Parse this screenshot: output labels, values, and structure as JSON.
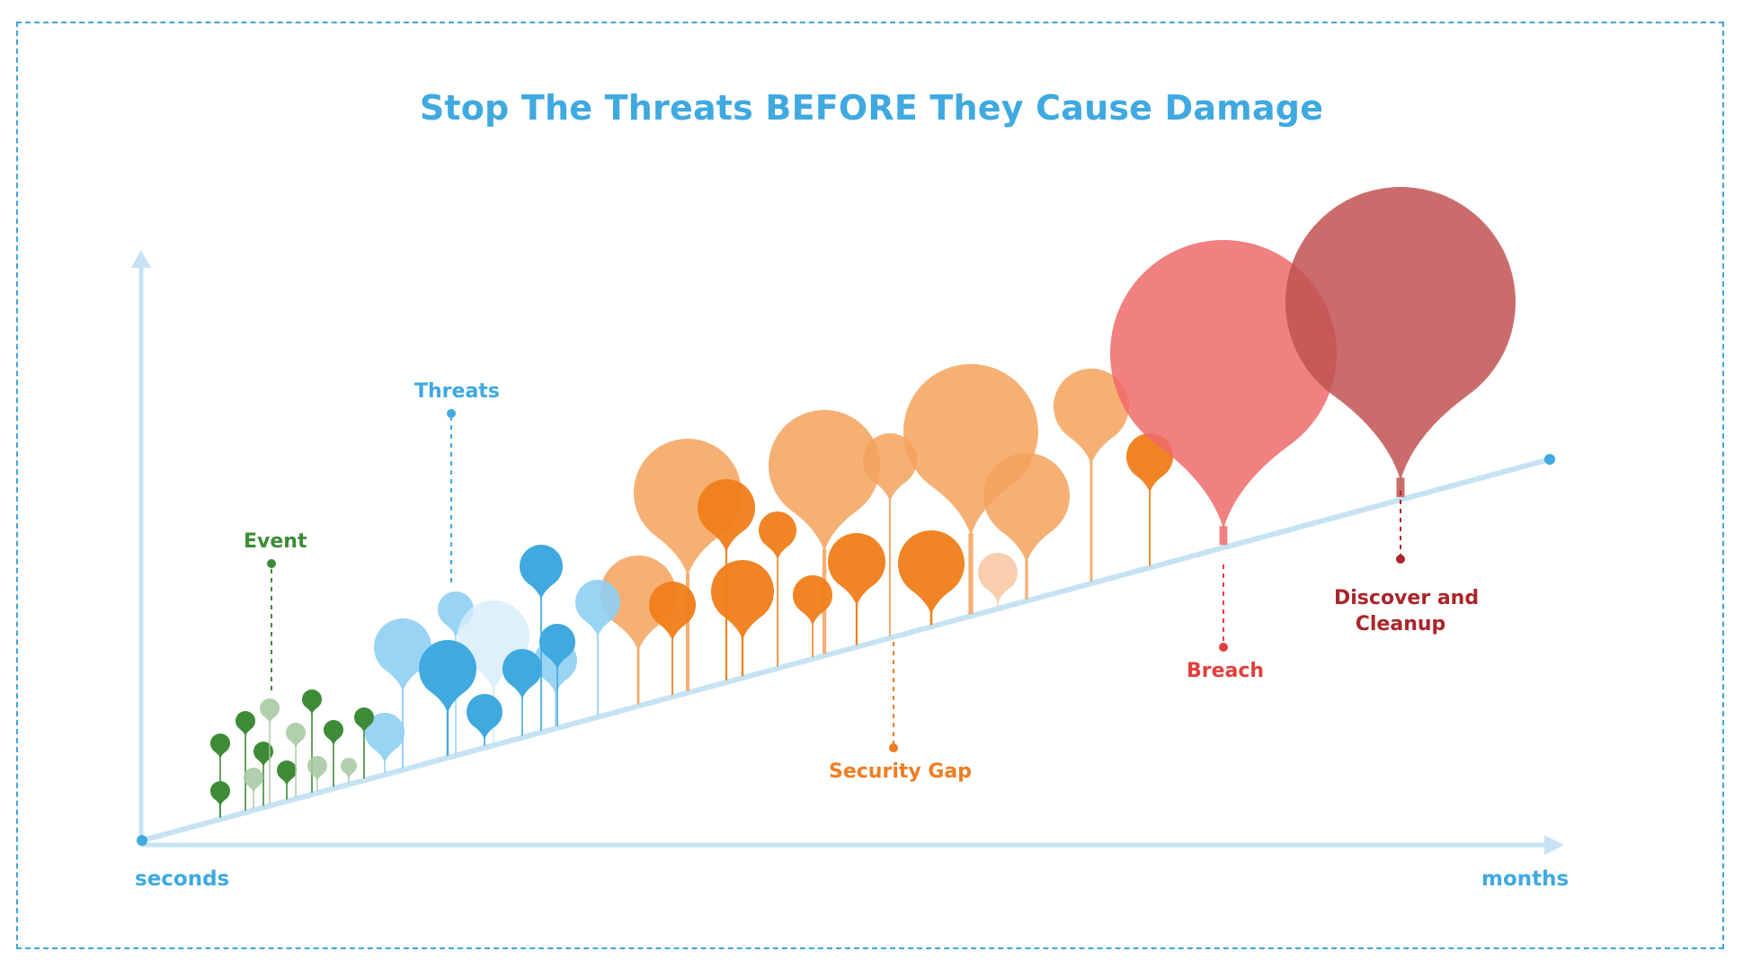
{
  "title": "Stop The Threats BEFORE They Cause Damage",
  "axis": {
    "x_start": "seconds",
    "x_end": "months"
  },
  "categories": [
    {
      "key": "event",
      "label": "Event",
      "color": "#3d8b37"
    },
    {
      "key": "threats",
      "label": "Threats",
      "color": "#3fa9e0"
    },
    {
      "key": "gap",
      "label": "Security Gap",
      "color": "#ef7d22"
    },
    {
      "key": "breach",
      "label": "Breach",
      "color": "#e0403d"
    },
    {
      "key": "discover",
      "label_line1": "Discover and",
      "label_line2": "Cleanup",
      "color": "#a8262a"
    }
  ],
  "colors": {
    "accent": "#3fa9e0",
    "axis": "#c6e3f4",
    "event": "#3d8b37",
    "event_light": "#a9c9a4",
    "threat": "#3fa9e0",
    "threat_light": "#8fcff3",
    "gap": "#f07d19",
    "gap_light": "#f4a25c",
    "breach": "#ee6a6a",
    "discover": "#c25252"
  }
}
